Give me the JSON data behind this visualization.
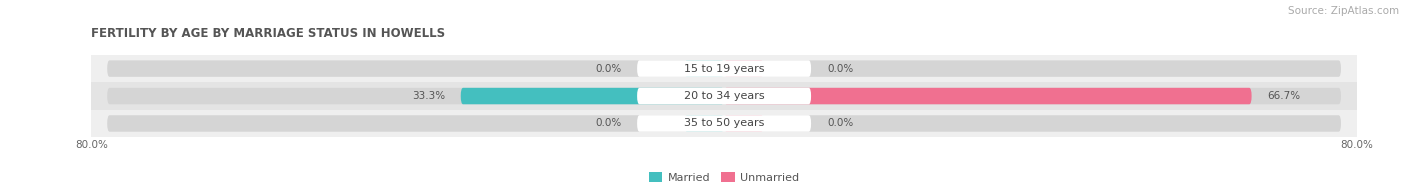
{
  "title": "FERTILITY BY AGE BY MARRIAGE STATUS IN HOWELLS",
  "source": "Source: ZipAtlas.com",
  "categories": [
    "35 to 50 years",
    "20 to 34 years",
    "15 to 19 years"
  ],
  "married_values": [
    0.0,
    33.3,
    0.0
  ],
  "unmarried_values": [
    0.0,
    66.7,
    0.0
  ],
  "xlim": [
    -80.0,
    80.0
  ],
  "married_color": "#44bfbf",
  "unmarried_color": "#f07090",
  "row_bg_even": "#efefef",
  "row_bg_odd": "#e4e4e4",
  "bar_bg_color": "#d5d5d5",
  "title_fontsize": 8.5,
  "source_fontsize": 7.5,
  "label_fontsize": 7.5,
  "category_fontsize": 8.0,
  "axis_label_fontsize": 7.5,
  "bar_height": 0.6,
  "background_color": "#ffffff"
}
